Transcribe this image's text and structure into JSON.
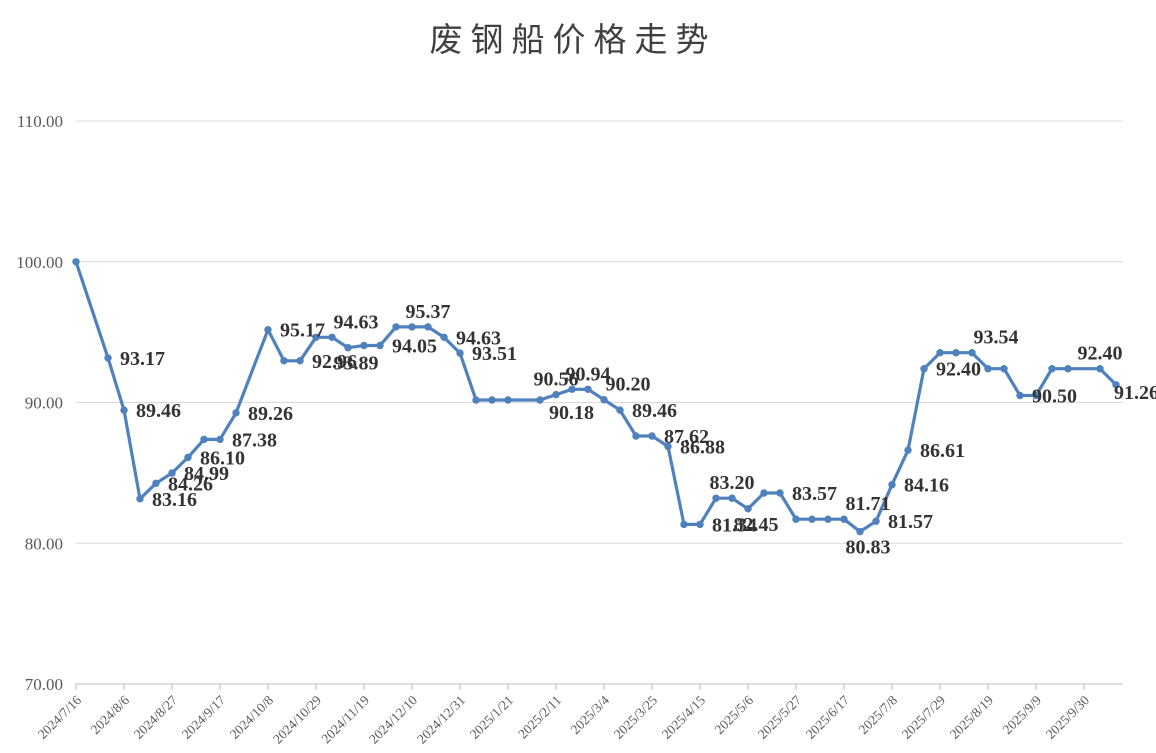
{
  "title": "废钢船价格走势",
  "chart_data": {
    "type": "line",
    "title": "废钢船价格走势",
    "ylim": [
      70,
      110
    ],
    "grid": "horizontal",
    "legend": "none",
    "y_ticks": [
      {
        "label": "110.00",
        "value": 110
      },
      {
        "label": "100.00",
        "value": 100
      },
      {
        "label": "90.00",
        "value": 90
      },
      {
        "label": "80.00",
        "value": 80
      },
      {
        "label": "70.00",
        "value": 70
      }
    ],
    "x_ticks": [
      "2024/7/16",
      "2024/8/6",
      "2024/8/27",
      "2024/9/17",
      "2024/10/8",
      "2024/10/29",
      "2024/11/19",
      "2024/12/10",
      "2024/12/31",
      "2025/1/21",
      "2025/2/11",
      "2025/3/4",
      "2025/3/25",
      "2025/4/15",
      "2025/5/6",
      "2025/5/27",
      "2025/6/17",
      "2025/7/8",
      "2025/7/29",
      "2025/8/19",
      "2025/9/9",
      "2025/9/30"
    ],
    "weeks_per_tick": 3,
    "points": [
      {
        "slot": 0,
        "value": 100.0,
        "label": null,
        "pos": null
      },
      {
        "slot": 2,
        "value": 93.17,
        "label": "93.17",
        "pos": "right"
      },
      {
        "slot": 3,
        "value": 89.46,
        "label": "89.46",
        "pos": "right"
      },
      {
        "slot": 4,
        "value": 83.16,
        "label": "83.16",
        "pos": "right"
      },
      {
        "slot": 5,
        "value": 84.26,
        "label": "84.26",
        "pos": "right"
      },
      {
        "slot": 6,
        "value": 84.99,
        "label": "84.99",
        "pos": "right"
      },
      {
        "slot": 7,
        "value": 86.1,
        "label": "86.10",
        "pos": "right"
      },
      {
        "slot": 8,
        "value": 87.38,
        "label": null,
        "pos": null
      },
      {
        "slot": 9,
        "value": 87.38,
        "label": "87.38",
        "pos": "right"
      },
      {
        "slot": 10,
        "value": 89.26,
        "label": "89.26",
        "pos": "right"
      },
      {
        "slot": 12,
        "value": 95.17,
        "label": "95.17",
        "pos": "right"
      },
      {
        "slot": 13,
        "value": 92.96,
        "label": null,
        "pos": null
      },
      {
        "slot": 14,
        "value": 92.96,
        "label": "92.96",
        "pos": "right"
      },
      {
        "slot": 15,
        "value": 94.63,
        "label": null,
        "pos": null
      },
      {
        "slot": 16,
        "value": 94.63,
        "label": "94.63",
        "pos": "above-right"
      },
      {
        "slot": 17,
        "value": 93.89,
        "label": "93.89",
        "pos": "below"
      },
      {
        "slot": 18,
        "value": 94.05,
        "label": null,
        "pos": null
      },
      {
        "slot": 19,
        "value": 94.05,
        "label": "94.05",
        "pos": "right"
      },
      {
        "slot": 20,
        "value": 95.37,
        "label": null,
        "pos": null
      },
      {
        "slot": 21,
        "value": 95.37,
        "label": null,
        "pos": null
      },
      {
        "slot": 22,
        "value": 95.37,
        "label": "95.37",
        "pos": "above"
      },
      {
        "slot": 23,
        "value": 94.63,
        "label": "94.63",
        "pos": "right"
      },
      {
        "slot": 24,
        "value": 93.51,
        "label": "93.51",
        "pos": "right"
      },
      {
        "slot": 25,
        "value": 90.18,
        "label": null,
        "pos": null
      },
      {
        "slot": 26,
        "value": 90.18,
        "label": null,
        "pos": null
      },
      {
        "slot": 27,
        "value": 90.18,
        "label": null,
        "pos": null
      },
      {
        "slot": 29,
        "value": 90.18,
        "label": "90.18",
        "pos": "below-right"
      },
      {
        "slot": 30,
        "value": 90.56,
        "label": "90.56",
        "pos": "above"
      },
      {
        "slot": 31,
        "value": 90.94,
        "label": null,
        "pos": null
      },
      {
        "slot": 32,
        "value": 90.94,
        "label": "90.94",
        "pos": "above"
      },
      {
        "slot": 33,
        "value": 90.2,
        "label": "90.20",
        "pos": "above-right"
      },
      {
        "slot": 34,
        "value": 89.46,
        "label": "89.46",
        "pos": "right"
      },
      {
        "slot": 35,
        "value": 87.62,
        "label": null,
        "pos": null
      },
      {
        "slot": 36,
        "value": 87.62,
        "label": "87.62",
        "pos": "right"
      },
      {
        "slot": 37,
        "value": 86.88,
        "label": "86.88",
        "pos": "right"
      },
      {
        "slot": 38,
        "value": 81.34,
        "label": null,
        "pos": null
      },
      {
        "slot": 39,
        "value": 81.34,
        "label": "81.34",
        "pos": "right"
      },
      {
        "slot": 40,
        "value": 83.2,
        "label": null,
        "pos": null
      },
      {
        "slot": 41,
        "value": 83.2,
        "label": "83.20",
        "pos": "above"
      },
      {
        "slot": 42,
        "value": 82.45,
        "label": "82.45",
        "pos": "below"
      },
      {
        "slot": 43,
        "value": 83.57,
        "label": null,
        "pos": null
      },
      {
        "slot": 44,
        "value": 83.57,
        "label": "83.57",
        "pos": "right"
      },
      {
        "slot": 45,
        "value": 81.71,
        "label": null,
        "pos": null
      },
      {
        "slot": 46,
        "value": 81.71,
        "label": null,
        "pos": null
      },
      {
        "slot": 47,
        "value": 81.71,
        "label": null,
        "pos": null
      },
      {
        "slot": 48,
        "value": 81.71,
        "label": "81.71",
        "pos": "above-right"
      },
      {
        "slot": 49,
        "value": 80.83,
        "label": "80.83",
        "pos": "below"
      },
      {
        "slot": 50,
        "value": 81.57,
        "label": "81.57",
        "pos": "right"
      },
      {
        "slot": 51,
        "value": 84.16,
        "label": "84.16",
        "pos": "right"
      },
      {
        "slot": 52,
        "value": 86.61,
        "label": "86.61",
        "pos": "right"
      },
      {
        "slot": 53,
        "value": 92.4,
        "label": "92.40",
        "pos": "right"
      },
      {
        "slot": 54,
        "value": 93.54,
        "label": null,
        "pos": null
      },
      {
        "slot": 55,
        "value": 93.54,
        "label": null,
        "pos": null
      },
      {
        "slot": 56,
        "value": 93.54,
        "label": "93.54",
        "pos": "above-right"
      },
      {
        "slot": 57,
        "value": 92.4,
        "label": null,
        "pos": null
      },
      {
        "slot": 58,
        "value": 92.4,
        "label": null,
        "pos": null
      },
      {
        "slot": 59,
        "value": 90.5,
        "label": "90.50",
        "pos": "right"
      },
      {
        "slot": 60,
        "value": 90.5,
        "label": null,
        "pos": null
      },
      {
        "slot": 61,
        "value": 92.4,
        "label": null,
        "pos": null
      },
      {
        "slot": 62,
        "value": 92.4,
        "label": null,
        "pos": null
      },
      {
        "slot": 64,
        "value": 92.4,
        "label": "92.40",
        "pos": "above"
      },
      {
        "slot": 65,
        "value": 91.26,
        "label": "91.26",
        "pos": "right-below"
      }
    ]
  },
  "style": {
    "line_color": "#4F81BD",
    "marker_color": "#4F81BD",
    "data_label_color": "#333333",
    "tick_label_color": "#595959",
    "grid_color": "#D9D9D9",
    "axis_color": "#BFBFBF",
    "title_color": "#404040",
    "background": "#FFFFFF"
  }
}
